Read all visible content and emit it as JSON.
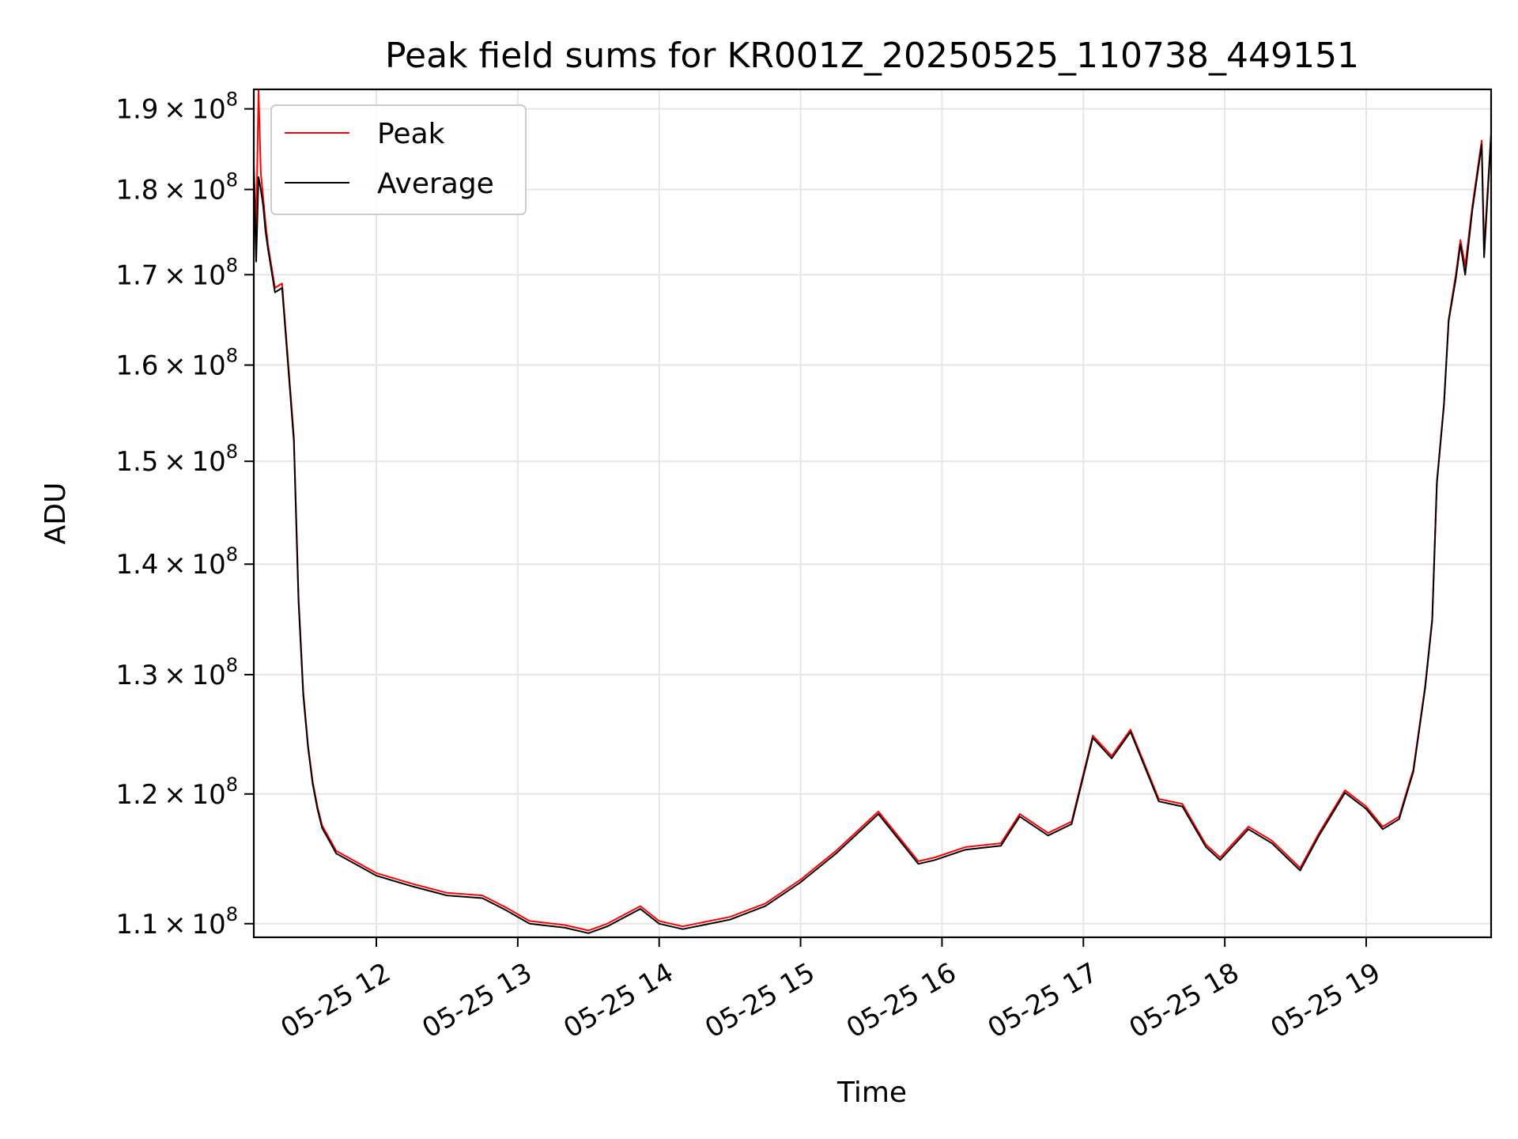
{
  "chart_data": {
    "type": "line",
    "title": "Peak field sums for KR001Z_20250525_110738_449151",
    "xlabel": "Time",
    "ylabel": "ADU",
    "x_unit": "date-time",
    "xlim": [
      "2025-05-25 11:08",
      "2025-05-25 19:53"
    ],
    "ylim": [
      109000000,
      192500000
    ],
    "y_scale": "log",
    "grid": true,
    "legend_position": "top-left",
    "x_ticks": [
      "2025-05-25 12:00",
      "2025-05-25 13:00",
      "2025-05-25 14:00",
      "2025-05-25 15:00",
      "2025-05-25 16:00",
      "2025-05-25 17:00",
      "2025-05-25 18:00",
      "2025-05-25 19:00"
    ],
    "x_tick_labels": [
      "05-25 12",
      "05-25 13",
      "05-25 14",
      "05-25 15",
      "05-25 16",
      "05-25 17",
      "05-25 18",
      "05-25 19"
    ],
    "y_ticks": [
      110000000,
      120000000,
      130000000,
      140000000,
      150000000,
      160000000,
      170000000,
      180000000,
      190000000
    ],
    "y_tick_labels": [
      {
        "mantissa": "1.1",
        "base": "10",
        "exp": "8"
      },
      {
        "mantissa": "1.2",
        "base": "10",
        "exp": "8"
      },
      {
        "mantissa": "1.3",
        "base": "10",
        "exp": "8"
      },
      {
        "mantissa": "1.4",
        "base": "10",
        "exp": "8"
      },
      {
        "mantissa": "1.5",
        "base": "10",
        "exp": "8"
      },
      {
        "mantissa": "1.6",
        "base": "10",
        "exp": "8"
      },
      {
        "mantissa": "1.7",
        "base": "10",
        "exp": "8"
      },
      {
        "mantissa": "1.8",
        "base": "10",
        "exp": "8"
      },
      {
        "mantissa": "1.9",
        "base": "10",
        "exp": "8"
      }
    ],
    "series": [
      {
        "name": "Peak",
        "color": "#ff0000",
        "x": [
          "2025-05-25 11:08",
          "2025-05-25 11:09",
          "2025-05-25 11:10",
          "2025-05-25 11:11",
          "2025-05-25 11:12",
          "2025-05-25 11:13",
          "2025-05-25 11:14",
          "2025-05-25 11:17",
          "2025-05-25 11:20",
          "2025-05-25 11:23",
          "2025-05-25 11:25",
          "2025-05-25 11:27",
          "2025-05-25 11:29",
          "2025-05-25 11:31",
          "2025-05-25 11:33",
          "2025-05-25 11:35",
          "2025-05-25 11:37",
          "2025-05-25 11:40",
          "2025-05-25 11:43",
          "2025-05-25 11:46",
          "2025-05-25 11:50",
          "2025-05-25 11:55",
          "2025-05-25 12:00",
          "2025-05-25 12:15",
          "2025-05-25 12:30",
          "2025-05-25 12:45",
          "2025-05-25 12:55",
          "2025-05-25 13:05",
          "2025-05-25 13:20",
          "2025-05-25 13:30",
          "2025-05-25 13:38",
          "2025-05-25 13:52",
          "2025-05-25 14:00",
          "2025-05-25 14:10",
          "2025-05-25 14:30",
          "2025-05-25 14:45",
          "2025-05-25 15:00",
          "2025-05-25 15:15",
          "2025-05-25 15:33",
          "2025-05-25 15:50",
          "2025-05-25 15:57",
          "2025-05-25 16:10",
          "2025-05-25 16:25",
          "2025-05-25 16:33",
          "2025-05-25 16:45",
          "2025-05-25 16:55",
          "2025-05-25 17:04",
          "2025-05-25 17:12",
          "2025-05-25 17:20",
          "2025-05-25 17:32",
          "2025-05-25 17:42",
          "2025-05-25 17:52",
          "2025-05-25 17:58",
          "2025-05-25 18:10",
          "2025-05-25 18:20",
          "2025-05-25 18:32",
          "2025-05-25 18:40",
          "2025-05-25 18:51",
          "2025-05-25 19:00",
          "2025-05-25 19:07",
          "2025-05-25 19:14",
          "2025-05-25 19:20",
          "2025-05-25 19:25",
          "2025-05-25 19:28",
          "2025-05-25 19:30",
          "2025-05-25 19:33",
          "2025-05-25 19:35",
          "2025-05-25 19:38",
          "2025-05-25 19:40",
          "2025-05-25 19:42",
          "2025-05-25 19:45",
          "2025-05-25 19:49",
          "2025-05-25 19:50",
          "2025-05-25 19:53"
        ],
        "y": [
          183000000,
          175000000,
          192500000,
          182000000,
          179000000,
          176000000,
          173500000,
          168500000,
          169000000,
          159000000,
          152500000,
          137000000,
          128500000,
          124000000,
          121000000,
          119000000,
          117500000,
          116500000,
          115500000,
          115200000,
          114800000,
          114300000,
          113800000,
          113000000,
          112300000,
          112100000,
          111200000,
          110200000,
          109900000,
          109500000,
          110000000,
          111300000,
          110200000,
          109800000,
          110500000,
          111500000,
          113300000,
          115500000,
          118600000,
          114700000,
          115000000,
          115800000,
          116100000,
          118400000,
          116900000,
          117800000,
          124800000,
          123100000,
          125300000,
          119600000,
          119200000,
          116000000,
          115000000,
          117400000,
          116300000,
          114200000,
          116900000,
          120300000,
          119000000,
          117400000,
          118200000,
          122000000,
          129000000,
          135000000,
          148000000,
          156000000,
          165000000,
          170000000,
          174000000,
          171000000,
          178000000,
          186000000,
          173000000,
          187000000
        ]
      },
      {
        "name": "Average",
        "color": "#000000",
        "x": [
          "2025-05-25 11:08",
          "2025-05-25 11:09",
          "2025-05-25 11:10",
          "2025-05-25 11:11",
          "2025-05-25 11:12",
          "2025-05-25 11:13",
          "2025-05-25 11:14",
          "2025-05-25 11:17",
          "2025-05-25 11:20",
          "2025-05-25 11:23",
          "2025-05-25 11:25",
          "2025-05-25 11:27",
          "2025-05-25 11:29",
          "2025-05-25 11:31",
          "2025-05-25 11:33",
          "2025-05-25 11:35",
          "2025-05-25 11:37",
          "2025-05-25 11:40",
          "2025-05-25 11:43",
          "2025-05-25 11:46",
          "2025-05-25 11:50",
          "2025-05-25 11:55",
          "2025-05-25 12:00",
          "2025-05-25 12:15",
          "2025-05-25 12:30",
          "2025-05-25 12:45",
          "2025-05-25 12:55",
          "2025-05-25 13:05",
          "2025-05-25 13:20",
          "2025-05-25 13:30",
          "2025-05-25 13:38",
          "2025-05-25 13:52",
          "2025-05-25 14:00",
          "2025-05-25 14:10",
          "2025-05-25 14:30",
          "2025-05-25 14:45",
          "2025-05-25 15:00",
          "2025-05-25 15:15",
          "2025-05-25 15:33",
          "2025-05-25 15:50",
          "2025-05-25 15:57",
          "2025-05-25 16:10",
          "2025-05-25 16:25",
          "2025-05-25 16:33",
          "2025-05-25 16:45",
          "2025-05-25 16:55",
          "2025-05-25 17:04",
          "2025-05-25 17:12",
          "2025-05-25 17:20",
          "2025-05-25 17:32",
          "2025-05-25 17:42",
          "2025-05-25 17:52",
          "2025-05-25 17:58",
          "2025-05-25 18:10",
          "2025-05-25 18:20",
          "2025-05-25 18:32",
          "2025-05-25 18:40",
          "2025-05-25 18:51",
          "2025-05-25 19:00",
          "2025-05-25 19:07",
          "2025-05-25 19:14",
          "2025-05-25 19:20",
          "2025-05-25 19:25",
          "2025-05-25 19:28",
          "2025-05-25 19:30",
          "2025-05-25 19:33",
          "2025-05-25 19:35",
          "2025-05-25 19:38",
          "2025-05-25 19:40",
          "2025-05-25 19:42",
          "2025-05-25 19:45",
          "2025-05-25 19:49",
          "2025-05-25 19:50",
          "2025-05-25 19:53"
        ],
        "y": [
          182500000,
          171500000,
          181500000,
          180000000,
          178000000,
          175000000,
          173000000,
          168000000,
          168500000,
          158500000,
          152000000,
          136500000,
          128200000,
          123800000,
          120800000,
          118800000,
          117300000,
          116300000,
          115300000,
          115000000,
          114600000,
          114100000,
          113600000,
          112800000,
          112100000,
          111900000,
          111000000,
          110000000,
          109700000,
          109300000,
          109800000,
          111100000,
          110000000,
          109600000,
          110300000,
          111300000,
          113100000,
          115300000,
          118400000,
          114500000,
          114800000,
          115600000,
          115900000,
          118200000,
          116700000,
          117600000,
          124600000,
          122900000,
          125100000,
          119400000,
          119000000,
          115800000,
          114800000,
          117200000,
          116100000,
          114000000,
          116700000,
          120100000,
          118800000,
          117200000,
          118000000,
          121800000,
          128800000,
          134800000,
          147800000,
          155800000,
          164800000,
          169500000,
          173500000,
          170000000,
          177500000,
          185500000,
          172000000,
          186800000
        ]
      }
    ]
  }
}
